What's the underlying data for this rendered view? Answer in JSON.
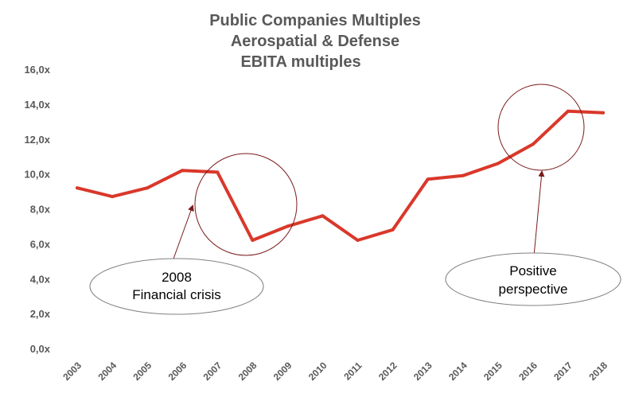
{
  "chart_data": {
    "type": "line",
    "title": [
      "Public Companies Multiples",
      "Aerospatial & Defense",
      "EBITA multiples"
    ],
    "xlabel": "",
    "ylabel": "",
    "x": [
      "2003",
      "2004",
      "2005",
      "2006",
      "2007",
      "2008",
      "2009",
      "2010",
      "2011",
      "2012",
      "2013",
      "2014",
      "2015",
      "2016",
      "2017",
      "2018"
    ],
    "series": [
      {
        "name": "EBITA multiple",
        "color": "#d9382b",
        "values": [
          9.2,
          8.7,
          9.2,
          10.2,
          10.1,
          6.2,
          7.0,
          7.6,
          6.2,
          6.8,
          9.7,
          9.9,
          10.6,
          11.7,
          13.6,
          13.5
        ]
      }
    ],
    "ylim": [
      0,
      16
    ],
    "yticks": [
      "0,0x",
      "2,0x",
      "4,0x",
      "6,0x",
      "8,0x",
      "10,0x",
      "12,0x",
      "14,0x",
      "16,0x"
    ],
    "grid": false,
    "annotations": [
      {
        "label": [
          "2008",
          "Financial crisis"
        ],
        "target_year": "2008"
      },
      {
        "label": [
          "Positive",
          "perspective"
        ],
        "target_year": "2016"
      }
    ],
    "colors": {
      "line": "#d9382b",
      "circle": "#7a1a1a",
      "arrow": "#7a1a1a",
      "ellipse": "#808080",
      "text": "#595959"
    }
  }
}
